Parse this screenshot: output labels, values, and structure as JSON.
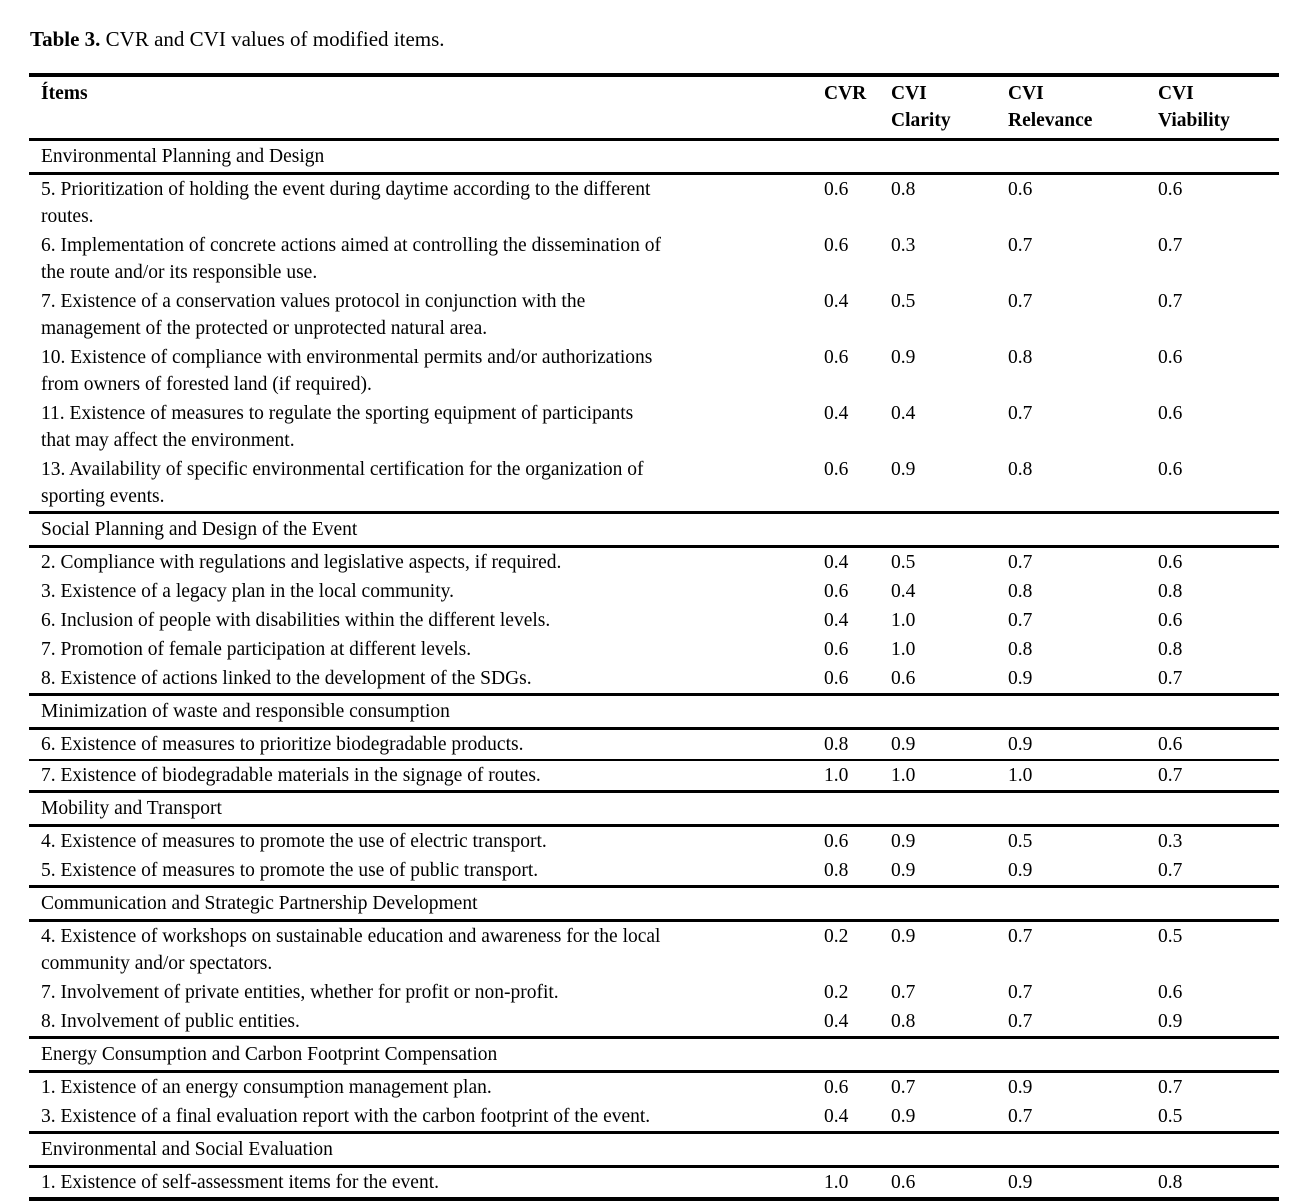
{
  "title": {
    "label": "Table 3.",
    "text": " CVR and CVI values of modified items."
  },
  "colors": {
    "text": "#000000",
    "background": "#ffffff",
    "rule": "#000000"
  },
  "table": {
    "columns": [
      {
        "id": "items",
        "label": "Ítems"
      },
      {
        "id": "cvr",
        "label": "CVR"
      },
      {
        "id": "cvi-clarity",
        "label": "CVI\nClarity"
      },
      {
        "id": "cvi-relevance",
        "label": "CVI\nRelevance"
      },
      {
        "id": "cvi-viability",
        "label": "CVI\nViability"
      }
    ],
    "sections": [
      {
        "header": "Environmental Planning and Design",
        "rows": [
          {
            "item": "5. Prioritization of holding the event during daytime according to the different\nroutes.",
            "values": [
              "0.6",
              "0.8",
              "0.6",
              "0.6"
            ]
          },
          {
            "item": "6. Implementation of concrete actions aimed at controlling the dissemination of\nthe route and/or its responsible use.",
            "values": [
              "0.6",
              "0.3",
              "0.7",
              "0.7"
            ]
          },
          {
            "item": "7. Existence of a conservation values protocol in conjunction with the\nmanagement of the protected or unprotected natural area.",
            "values": [
              "0.4",
              "0.5",
              "0.7",
              "0.7"
            ]
          },
          {
            "item": "10. Existence of compliance with environmental permits and/or authorizations\nfrom owners of forested land (if required).",
            "values": [
              "0.6",
              "0.9",
              "0.8",
              "0.6"
            ]
          },
          {
            "item": "11. Existence of measures to regulate the sporting equipment of participants\nthat may affect the environment.",
            "values": [
              "0.4",
              "0.4",
              "0.7",
              "0.6"
            ]
          },
          {
            "item": "13. Availability of specific environmental certification for the organization of\nsporting events.",
            "values": [
              "0.6",
              "0.9",
              "0.8",
              "0.6"
            ]
          }
        ]
      },
      {
        "header": "Social Planning and Design of the Event",
        "rows": [
          {
            "item": "2. Compliance with regulations and legislative aspects, if required.",
            "values": [
              "0.4",
              "0.5",
              "0.7",
              "0.6"
            ]
          },
          {
            "item": "3. Existence of a legacy plan in the local community.",
            "values": [
              "0.6",
              "0.4",
              "0.8",
              "0.8"
            ]
          },
          {
            "item": "6. Inclusion of people with disabilities within the different levels.",
            "values": [
              "0.4",
              "1.0",
              "0.7",
              "0.6"
            ]
          },
          {
            "item": "7. Promotion of female participation at different levels.",
            "values": [
              "0.6",
              "1.0",
              "0.8",
              "0.8"
            ]
          },
          {
            "item": "8. Existence of actions linked to the development of the SDGs.",
            "values": [
              "0.6",
              "0.6",
              "0.9",
              "0.7"
            ]
          }
        ]
      },
      {
        "header": "Minimization of waste and responsible consumption",
        "rows": [
          {
            "item": "6. Existence of measures to prioritize biodegradable products.",
            "values": [
              "0.8",
              "0.9",
              "0.9",
              "0.6"
            ],
            "rule_after": true
          },
          {
            "item": "7. Existence of biodegradable materials in the signage of routes.",
            "values": [
              "1.0",
              "1.0",
              "1.0",
              "0.7"
            ]
          }
        ]
      },
      {
        "header": "Mobility and Transport",
        "rows": [
          {
            "item": "4. Existence of measures to promote the use of electric transport.",
            "values": [
              "0.6",
              "0.9",
              "0.5",
              "0.3"
            ]
          },
          {
            "item": "5. Existence of measures to promote the use of public transport.",
            "values": [
              "0.8",
              "0.9",
              "0.9",
              "0.7"
            ]
          }
        ]
      },
      {
        "header": "Communication and Strategic Partnership Development",
        "rows": [
          {
            "item": "4. Existence of workshops on sustainable education and awareness for the local\ncommunity and/or spectators.",
            "values": [
              "0.2",
              "0.9",
              "0.7",
              "0.5"
            ]
          },
          {
            "item": "7. Involvement of private entities, whether for profit or non-profit.",
            "values": [
              "0.2",
              "0.7",
              "0.7",
              "0.6"
            ]
          },
          {
            "item": "8. Involvement of public entities.",
            "values": [
              "0.4",
              "0.8",
              "0.7",
              "0.9"
            ]
          }
        ]
      },
      {
        "header": "Energy Consumption and Carbon Footprint Compensation",
        "rows": [
          {
            "item": "1. Existence of an energy consumption management plan.",
            "values": [
              "0.6",
              "0.7",
              "0.9",
              "0.7"
            ]
          },
          {
            "item": "3. Existence of a final evaluation report with the carbon footprint of the event.",
            "values": [
              "0.4",
              "0.9",
              "0.7",
              "0.5"
            ]
          }
        ]
      },
      {
        "header": "Environmental and Social Evaluation",
        "rows": [
          {
            "item": "1. Existence of self-assessment items for the event.",
            "values": [
              "1.0",
              "0.6",
              "0.9",
              "0.8"
            ]
          }
        ]
      }
    ]
  }
}
